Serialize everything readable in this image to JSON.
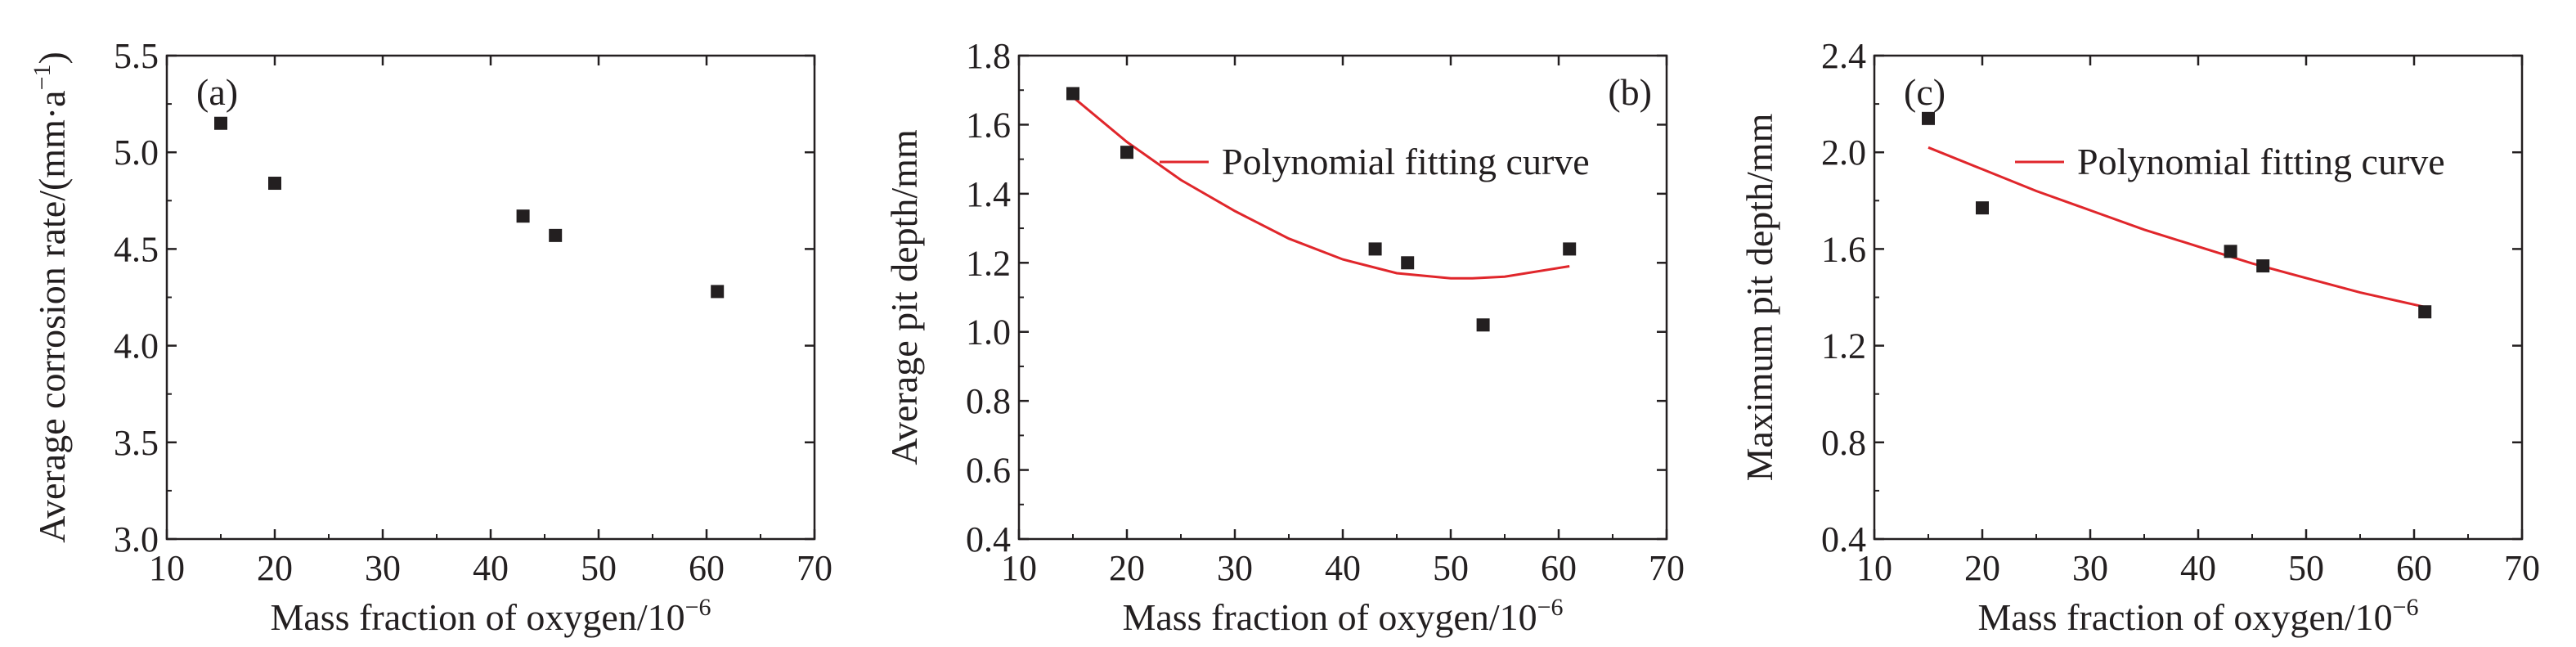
{
  "chart_data": [
    {
      "type": "scatter",
      "panel_label": "(a)",
      "xlabel_main": "Mass fraction of oxygen/10",
      "xlabel_sup": "−6",
      "ylabel_main": "Average corrosion rate/(mm·a",
      "ylabel_sup": "−1",
      "ylabel_end": ")",
      "xlim": [
        10,
        70
      ],
      "ylim": [
        3.0,
        5.5
      ],
      "xticks": [
        "10",
        "20",
        "30",
        "40",
        "50",
        "60",
        "70"
      ],
      "yticks": [
        "3.0",
        "3.5",
        "4.0",
        "4.5",
        "5.0",
        "5.5"
      ],
      "series": [
        {
          "x": [
            15,
            20,
            43,
            46,
            61
          ],
          "y": [
            5.15,
            4.84,
            4.67,
            4.57,
            4.28
          ]
        }
      ]
    },
    {
      "type": "scatter",
      "panel_label": "(b)",
      "xlabel_main": "Mass fraction of oxygen/10",
      "xlabel_sup": "−6",
      "ylabel_main": "Average pit depth/mm",
      "xlim": [
        10,
        70
      ],
      "ylim": [
        0.4,
        1.8
      ],
      "xticks": [
        "10",
        "20",
        "30",
        "40",
        "50",
        "60",
        "70"
      ],
      "yticks": [
        "0.4",
        "0.6",
        "0.8",
        "1.0",
        "1.2",
        "1.4",
        "1.6",
        "1.8"
      ],
      "series": [
        {
          "x": [
            15,
            20,
            43,
            46,
            53,
            61
          ],
          "y": [
            1.69,
            1.52,
            1.24,
            1.2,
            1.02,
            1.24
          ]
        }
      ],
      "fit": {
        "name": "Polynomial fitting curve",
        "color": "#e0262b",
        "x": [
          15,
          20,
          25,
          30,
          35,
          40,
          45,
          50,
          52,
          55,
          61
        ],
        "y": [
          1.68,
          1.55,
          1.44,
          1.35,
          1.27,
          1.21,
          1.17,
          1.155,
          1.155,
          1.16,
          1.19
        ]
      },
      "legend_position": "top-right"
    },
    {
      "type": "scatter",
      "panel_label": "(c)",
      "xlabel_main": "Mass fraction of oxygen/10",
      "xlabel_sup": "−6",
      "ylabel_main": "Maximum pit depth/mm",
      "xlim": [
        10,
        70
      ],
      "ylim": [
        0.4,
        2.4
      ],
      "xticks": [
        "10",
        "20",
        "30",
        "40",
        "50",
        "60",
        "70"
      ],
      "yticks": [
        "0.4",
        "0.8",
        "1.2",
        "1.6",
        "2.0",
        "2.4"
      ],
      "series": [
        {
          "x": [
            15,
            20,
            43,
            46,
            61
          ],
          "y": [
            2.14,
            1.77,
            1.59,
            1.53,
            1.34
          ]
        }
      ],
      "fit": {
        "name": "Polynomial fitting curve",
        "color": "#e0262b",
        "x": [
          15,
          20,
          25,
          30,
          35,
          40,
          45,
          50,
          55,
          61
        ],
        "y": [
          2.02,
          1.93,
          1.84,
          1.76,
          1.68,
          1.61,
          1.54,
          1.48,
          1.42,
          1.36
        ]
      },
      "legend_position": "top-right"
    }
  ]
}
